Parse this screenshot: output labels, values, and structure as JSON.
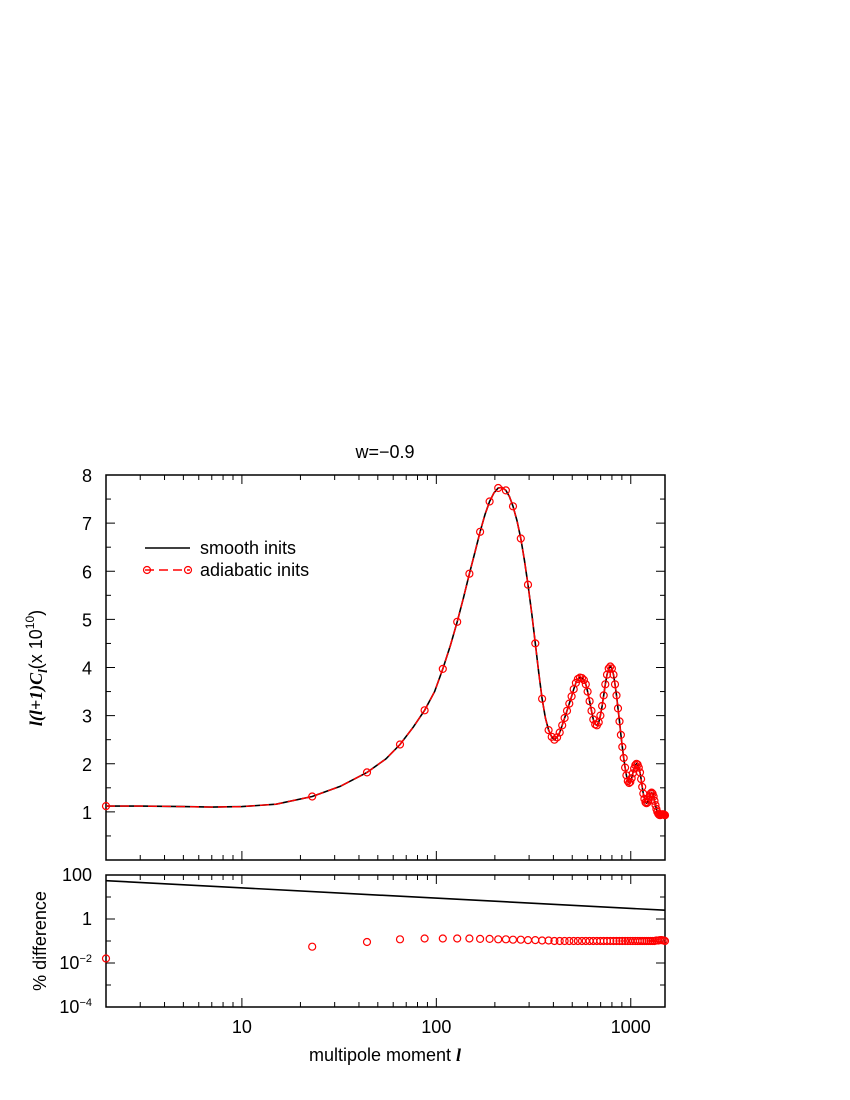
{
  "chart_data": {
    "title": "w=−0.9",
    "legend": {
      "placement": "top-left",
      "smooth_label": "smooth inits",
      "adiabatic_label": "adiabatic inits"
    },
    "top_panel": {
      "type": "line",
      "xscale": "log",
      "xlim": [
        2,
        1500
      ],
      "ylim": [
        0,
        8
      ],
      "yticks": [
        "1",
        "2",
        "3",
        "4",
        "5",
        "6",
        "7",
        "8"
      ],
      "ylabel_l": "l(l+1)",
      "ylabel_c": "C",
      "ylabel_sub": "l",
      "ylabel_rest": "(x 10",
      "ylabel_exp": "10",
      "ylabel_close": ")",
      "series": [
        {
          "name": "smooth inits",
          "color": "#000000",
          "style": "solid",
          "x": [
            2,
            3,
            5,
            7,
            10,
            15,
            23,
            32,
            44,
            55,
            65,
            76,
            87,
            98,
            108,
            118,
            128,
            138,
            148,
            158,
            168,
            178,
            188,
            198,
            208,
            218,
            228,
            238,
            248,
            260,
            272,
            284,
            296,
            310,
            323,
            336,
            350,
            364,
            378,
            392,
            405,
            418,
            431,
            444,
            457,
            470,
            483,
            496,
            509,
            522,
            535,
            548,
            561,
            574,
            587,
            600,
            614,
            628,
            642,
            656,
            670,
            684,
            698,
            712,
            726,
            740,
            755,
            770,
            785,
            800,
            815,
            830,
            845,
            860,
            875,
            890,
            905,
            920,
            935,
            950,
            965,
            980,
            995,
            1010,
            1025,
            1040,
            1055,
            1070,
            1085,
            1100,
            1115,
            1130,
            1145,
            1160,
            1175,
            1190,
            1205,
            1220,
            1235,
            1250,
            1265,
            1280,
            1295,
            1310,
            1325,
            1340,
            1355,
            1370,
            1385,
            1400,
            1415,
            1430,
            1445,
            1460,
            1475,
            1490,
            1500
          ],
          "y": [
            1.12,
            1.12,
            1.11,
            1.1,
            1.11,
            1.16,
            1.32,
            1.53,
            1.82,
            2.1,
            2.4,
            2.76,
            3.11,
            3.5,
            3.97,
            4.45,
            4.95,
            5.45,
            5.95,
            6.4,
            6.82,
            7.18,
            7.45,
            7.63,
            7.73,
            7.74,
            7.68,
            7.55,
            7.35,
            7.05,
            6.68,
            6.22,
            5.72,
            5.1,
            4.5,
            3.9,
            3.35,
            2.95,
            2.7,
            2.56,
            2.5,
            2.55,
            2.65,
            2.8,
            2.95,
            3.1,
            3.25,
            3.4,
            3.55,
            3.68,
            3.76,
            3.79,
            3.78,
            3.74,
            3.65,
            3.5,
            3.3,
            3.1,
            2.92,
            2.82,
            2.8,
            2.86,
            3.0,
            3.2,
            3.42,
            3.65,
            3.85,
            3.98,
            4.02,
            3.98,
            3.85,
            3.65,
            3.42,
            3.15,
            2.88,
            2.6,
            2.35,
            2.12,
            1.92,
            1.76,
            1.64,
            1.6,
            1.62,
            1.7,
            1.8,
            1.9,
            1.97,
            2.0,
            1.98,
            1.92,
            1.82,
            1.68,
            1.52,
            1.38,
            1.27,
            1.2,
            1.18,
            1.2,
            1.25,
            1.32,
            1.38,
            1.4,
            1.38,
            1.32,
            1.23,
            1.14,
            1.06,
            1.0,
            0.96,
            0.94,
            0.93,
            0.94,
            0.95,
            0.95,
            0.95,
            0.94,
            0.93
          ]
        },
        {
          "name": "adiabatic inits",
          "color": "#ff0000",
          "style": "dashed",
          "marker": "circle",
          "x": [
            2,
            23,
            44,
            65,
            87,
            108,
            128,
            148,
            168,
            188,
            208,
            228,
            248,
            272,
            296,
            323,
            350,
            378,
            392,
            405,
            418,
            431,
            444,
            457,
            470,
            483,
            496,
            509,
            522,
            535,
            548,
            561,
            574,
            587,
            600,
            614,
            628,
            642,
            656,
            670,
            684,
            698,
            712,
            726,
            740,
            755,
            770,
            785,
            800,
            815,
            830,
            845,
            860,
            875,
            890,
            905,
            920,
            935,
            950,
            965,
            980,
            995,
            1010,
            1025,
            1040,
            1055,
            1070,
            1085,
            1100,
            1115,
            1130,
            1145,
            1160,
            1175,
            1190,
            1205,
            1220,
            1235,
            1250,
            1265,
            1280,
            1295,
            1310,
            1325,
            1340,
            1355,
            1370,
            1385,
            1400,
            1415,
            1430,
            1445,
            1460,
            1475,
            1490,
            1500
          ],
          "y": [
            1.12,
            1.32,
            1.82,
            2.4,
            3.11,
            3.97,
            4.95,
            5.95,
            6.82,
            7.45,
            7.73,
            7.68,
            7.35,
            6.68,
            5.72,
            4.5,
            3.35,
            2.7,
            2.56,
            2.5,
            2.55,
            2.65,
            2.8,
            2.95,
            3.1,
            3.25,
            3.4,
            3.55,
            3.68,
            3.76,
            3.79,
            3.78,
            3.74,
            3.65,
            3.5,
            3.3,
            3.1,
            2.92,
            2.82,
            2.8,
            2.86,
            3.0,
            3.2,
            3.42,
            3.65,
            3.85,
            3.98,
            4.02,
            3.98,
            3.85,
            3.65,
            3.42,
            3.15,
            2.88,
            2.6,
            2.35,
            2.12,
            1.92,
            1.76,
            1.64,
            1.6,
            1.62,
            1.7,
            1.8,
            1.9,
            1.97,
            2.0,
            1.98,
            1.92,
            1.82,
            1.68,
            1.52,
            1.38,
            1.27,
            1.2,
            1.18,
            1.2,
            1.25,
            1.32,
            1.38,
            1.4,
            1.38,
            1.32,
            1.23,
            1.14,
            1.06,
            1.0,
            0.96,
            0.94,
            0.93,
            0.94,
            0.95,
            0.95,
            0.95,
            0.94,
            0.93
          ]
        }
      ]
    },
    "bottom_panel": {
      "type": "scatter",
      "xscale": "log",
      "yscale": "log",
      "xlim": [
        2,
        1500
      ],
      "ylim": [
        0.0001,
        100
      ],
      "ylabel": "% difference",
      "xlabel": "multipole moment",
      "xlabel_symbol": "l",
      "xticks": [
        "10",
        "100",
        "1000"
      ],
      "yticks": [
        {
          "value": 100,
          "base": "100",
          "exp": ""
        },
        {
          "value": 1,
          "base": "1",
          "exp": ""
        },
        {
          "value": 0.01,
          "base": "10",
          "exp": "−2"
        },
        {
          "value": 0.0001,
          "base": "10",
          "exp": "−4"
        }
      ],
      "series": [
        {
          "name": "smooth inits",
          "color": "#000000",
          "style": "solid",
          "x": [
            2,
            1500
          ],
          "y": [
            55,
            2.5
          ]
        },
        {
          "name": "adiabatic inits",
          "color": "#ff0000",
          "marker": "circle",
          "x": [
            2,
            23,
            44,
            65,
            87,
            108,
            128,
            148,
            168,
            188,
            208,
            228,
            248,
            272,
            296,
            323,
            350,
            378,
            405,
            431,
            457,
            483,
            509,
            535,
            561,
            587,
            614,
            642,
            670,
            698,
            726,
            755,
            785,
            815,
            845,
            875,
            905,
            935,
            965,
            995,
            1025,
            1055,
            1085,
            1115,
            1145,
            1175,
            1205,
            1235,
            1265,
            1295,
            1325,
            1355,
            1385,
            1415,
            1445,
            1475,
            1500
          ],
          "y": [
            0.016,
            0.055,
            0.09,
            0.12,
            0.13,
            0.13,
            0.13,
            0.13,
            0.125,
            0.125,
            0.12,
            0.12,
            0.115,
            0.115,
            0.11,
            0.11,
            0.105,
            0.105,
            0.1,
            0.1,
            0.1,
            0.1,
            0.1,
            0.1,
            0.1,
            0.1,
            0.1,
            0.1,
            0.1,
            0.1,
            0.1,
            0.1,
            0.1,
            0.1,
            0.1,
            0.1,
            0.1,
            0.1,
            0.1,
            0.1,
            0.1,
            0.1,
            0.1,
            0.1,
            0.1,
            0.1,
            0.1,
            0.1,
            0.1,
            0.1,
            0.1,
            0.105,
            0.105,
            0.11,
            0.11,
            0.105,
            0.1
          ]
        }
      ]
    }
  }
}
